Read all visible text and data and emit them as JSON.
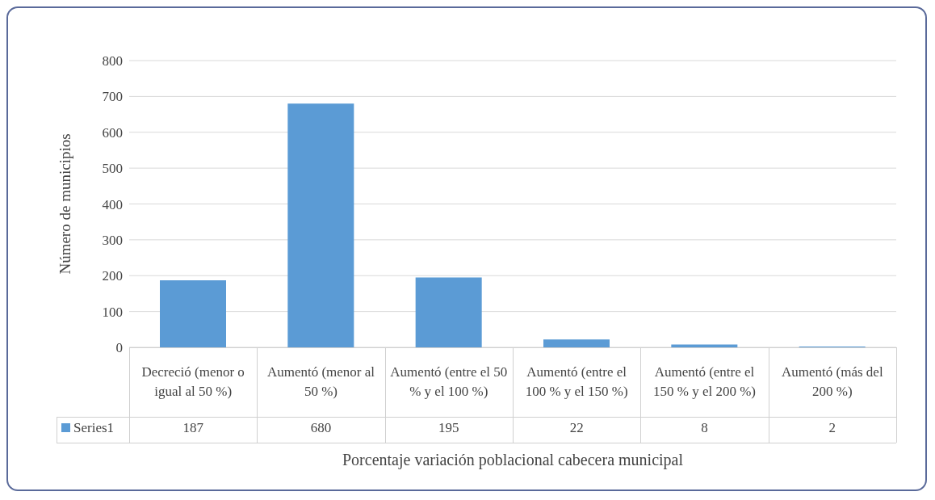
{
  "chart_data": {
    "type": "bar",
    "xlabel": "Porcentaje variación poblacional cabecera municipal",
    "ylabel": "Número de municipios",
    "categories": [
      "Decreció (menor o igual al 50 %)",
      "Aumentó (menor al 50 %)",
      "Aumentó (entre el 50 % y el 100 %)",
      "Aumentó (entre el 100 % y el 150 %)",
      "Aumentó (entre el 150 % y el 200 %)",
      "Aumentó (más del 200 %)"
    ],
    "series": [
      {
        "name": "Series1",
        "color": "#5b9bd5",
        "values": [
          187,
          680,
          195,
          22,
          8,
          2
        ]
      }
    ],
    "ylim": [
      0,
      800
    ],
    "yticks": [
      0,
      100,
      200,
      300,
      400,
      500,
      600,
      700,
      800
    ],
    "grid": "y",
    "data_labels": true
  }
}
